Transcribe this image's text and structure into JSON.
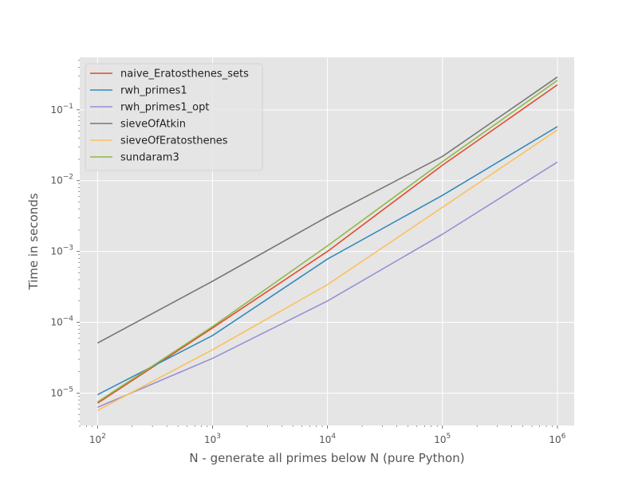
{
  "chart_data": {
    "type": "line",
    "title": "",
    "xlabel": "N - generate all primes below N (pure Python)",
    "ylabel": "Time in seconds",
    "xscale": "log",
    "yscale": "log",
    "xlim": [
      70,
      1400000
    ],
    "ylim": [
      3.5e-06,
      0.55
    ],
    "grid": true,
    "legend_position": "top-left",
    "x": [
      100,
      1000,
      10000,
      100000,
      1000000
    ],
    "x_ticks": [
      {
        "value": 100,
        "base": "10",
        "exp": "2"
      },
      {
        "value": 1000,
        "base": "10",
        "exp": "3"
      },
      {
        "value": 10000,
        "base": "10",
        "exp": "4"
      },
      {
        "value": 100000,
        "base": "10",
        "exp": "5"
      },
      {
        "value": 1000000,
        "base": "10",
        "exp": "6"
      }
    ],
    "y_ticks": [
      {
        "value": 1e-05,
        "base": "10",
        "exp": "−5"
      },
      {
        "value": 0.0001,
        "base": "10",
        "exp": "−4"
      },
      {
        "value": 0.001,
        "base": "10",
        "exp": "−3"
      },
      {
        "value": 0.01,
        "base": "10",
        "exp": "−2"
      },
      {
        "value": 0.1,
        "base": "10",
        "exp": "−1"
      }
    ],
    "series": [
      {
        "name": "naive_Eratosthenes_sets",
        "color": "#E24A33",
        "values": [
          7.2e-06,
          8.3e-05,
          0.001,
          0.0165,
          0.225
        ]
      },
      {
        "name": "rwh_primes1",
        "color": "#348ABD",
        "values": [
          9.5e-06,
          6.5e-05,
          0.00078,
          0.0062,
          0.058
        ]
      },
      {
        "name": "rwh_primes1_opt",
        "color": "#988ED5",
        "values": [
          6.3e-06,
          3.1e-05,
          0.0002,
          0.00175,
          0.0183
        ]
      },
      {
        "name": "sieveOfAtkin",
        "color": "#777777",
        "values": [
          5.1e-05,
          0.00038,
          0.0031,
          0.022,
          0.29
        ]
      },
      {
        "name": "sieveOfEratosthenes",
        "color": "#FBC15E",
        "values": [
          5.7e-06,
          4.1e-05,
          0.00034,
          0.0042,
          0.052
        ]
      },
      {
        "name": "sundaram3",
        "color": "#8EBA42",
        "values": [
          7.5e-06,
          8.7e-05,
          0.0012,
          0.0185,
          0.26
        ]
      }
    ]
  }
}
